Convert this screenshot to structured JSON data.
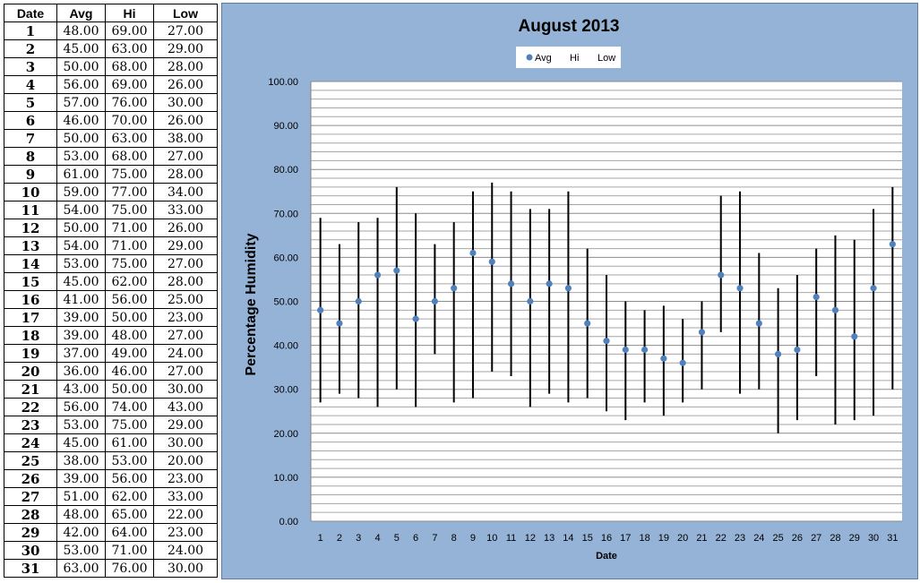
{
  "table": {
    "headers": [
      "Date",
      "Avg",
      "Hi",
      "Low"
    ],
    "rows": [
      [
        "1",
        "48.00",
        "69.00",
        "27.00"
      ],
      [
        "2",
        "45.00",
        "63.00",
        "29.00"
      ],
      [
        "3",
        "50.00",
        "68.00",
        "28.00"
      ],
      [
        "4",
        "56.00",
        "69.00",
        "26.00"
      ],
      [
        "5",
        "57.00",
        "76.00",
        "30.00"
      ],
      [
        "6",
        "46.00",
        "70.00",
        "26.00"
      ],
      [
        "7",
        "50.00",
        "63.00",
        "38.00"
      ],
      [
        "8",
        "53.00",
        "68.00",
        "27.00"
      ],
      [
        "9",
        "61.00",
        "75.00",
        "28.00"
      ],
      [
        "10",
        "59.00",
        "77.00",
        "34.00"
      ],
      [
        "11",
        "54.00",
        "75.00",
        "33.00"
      ],
      [
        "12",
        "50.00",
        "71.00",
        "26.00"
      ],
      [
        "13",
        "54.00",
        "71.00",
        "29.00"
      ],
      [
        "14",
        "53.00",
        "75.00",
        "27.00"
      ],
      [
        "15",
        "45.00",
        "62.00",
        "28.00"
      ],
      [
        "16",
        "41.00",
        "56.00",
        "25.00"
      ],
      [
        "17",
        "39.00",
        "50.00",
        "23.00"
      ],
      [
        "18",
        "39.00",
        "48.00",
        "27.00"
      ],
      [
        "19",
        "37.00",
        "49.00",
        "24.00"
      ],
      [
        "20",
        "36.00",
        "46.00",
        "27.00"
      ],
      [
        "21",
        "43.00",
        "50.00",
        "30.00"
      ],
      [
        "22",
        "56.00",
        "74.00",
        "43.00"
      ],
      [
        "23",
        "53.00",
        "75.00",
        "29.00"
      ],
      [
        "24",
        "45.00",
        "61.00",
        "30.00"
      ],
      [
        "25",
        "38.00",
        "53.00",
        "20.00"
      ],
      [
        "26",
        "39.00",
        "56.00",
        "23.00"
      ],
      [
        "27",
        "51.00",
        "62.00",
        "33.00"
      ],
      [
        "28",
        "48.00",
        "65.00",
        "22.00"
      ],
      [
        "29",
        "42.00",
        "64.00",
        "23.00"
      ],
      [
        "30",
        "53.00",
        "71.00",
        "24.00"
      ],
      [
        "31",
        "63.00",
        "76.00",
        "30.00"
      ]
    ]
  },
  "chart_data": {
    "type": "scatter",
    "title": "August 2013",
    "xlabel": "Date",
    "ylabel": "Percentage Humidity",
    "x": [
      1,
      2,
      3,
      4,
      5,
      6,
      7,
      8,
      9,
      10,
      11,
      12,
      13,
      14,
      15,
      16,
      17,
      18,
      19,
      20,
      21,
      22,
      23,
      24,
      25,
      26,
      27,
      28,
      29,
      30,
      31
    ],
    "series": [
      {
        "name": "Avg",
        "values": [
          48,
          45,
          50,
          56,
          57,
          46,
          50,
          53,
          61,
          59,
          54,
          50,
          54,
          53,
          45,
          41,
          39,
          39,
          37,
          36,
          43,
          56,
          53,
          45,
          38,
          39,
          51,
          48,
          42,
          53,
          63
        ]
      },
      {
        "name": "Hi",
        "values": [
          69,
          63,
          68,
          69,
          76,
          70,
          63,
          68,
          75,
          77,
          75,
          71,
          71,
          75,
          62,
          56,
          50,
          48,
          49,
          46,
          50,
          74,
          75,
          61,
          53,
          56,
          62,
          65,
          64,
          71,
          76
        ]
      },
      {
        "name": "Low",
        "values": [
          27,
          29,
          28,
          26,
          30,
          26,
          38,
          27,
          28,
          34,
          33,
          26,
          29,
          27,
          28,
          25,
          23,
          27,
          24,
          27,
          30,
          43,
          29,
          30,
          20,
          23,
          33,
          22,
          23,
          24,
          30
        ]
      }
    ],
    "ylim": [
      0,
      100
    ],
    "y_ticks": [
      "0.00",
      "10.00",
      "20.00",
      "30.00",
      "40.00",
      "50.00",
      "60.00",
      "70.00",
      "80.00",
      "90.00",
      "100.00"
    ],
    "grid": true,
    "legend_position": "top",
    "colors": {
      "avg_marker": "#4f81bd",
      "hi_low_line": "#000000",
      "plot_background": "#ffffff",
      "chart_background": "#95b3d7",
      "gridline": "#a6a6a6"
    }
  }
}
